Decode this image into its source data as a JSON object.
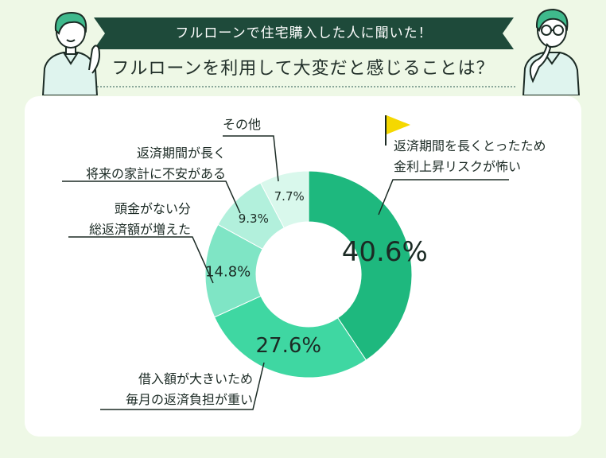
{
  "header": {
    "ribbon_text": "フルローンで住宅購入した人に聞いた！",
    "headline": "フルローンを利用して大変だと感じることは？"
  },
  "colors": {
    "ribbon": "#1e4a3a",
    "background": "#eef8e6",
    "flag": "#f5d800",
    "slices": [
      "#1eb87e",
      "#3fd7a2",
      "#7fe5c5",
      "#b2f0dc",
      "#d9f8ec"
    ]
  },
  "chart_data": {
    "type": "pie",
    "donut": true,
    "unit": "%",
    "slices": [
      {
        "label_lines": [
          "返済期間を長くとったため",
          "金利上昇リスクが怖い"
        ],
        "value": 40.6,
        "value_text": "40.6%"
      },
      {
        "label_lines": [
          "借入額が大きいため",
          "毎月の返済負担が重い"
        ],
        "value": 27.6,
        "value_text": "27.6%"
      },
      {
        "label_lines": [
          "頭金がない分",
          "総返済額が増えた"
        ],
        "value": 14.8,
        "value_text": "14.8%"
      },
      {
        "label_lines": [
          "返済期間が長く",
          "将来の家計に不安がある"
        ],
        "value": 9.3,
        "value_text": "9.3%"
      },
      {
        "label_lines": [
          "その他"
        ],
        "value": 7.7,
        "value_text": "7.7%"
      }
    ]
  }
}
